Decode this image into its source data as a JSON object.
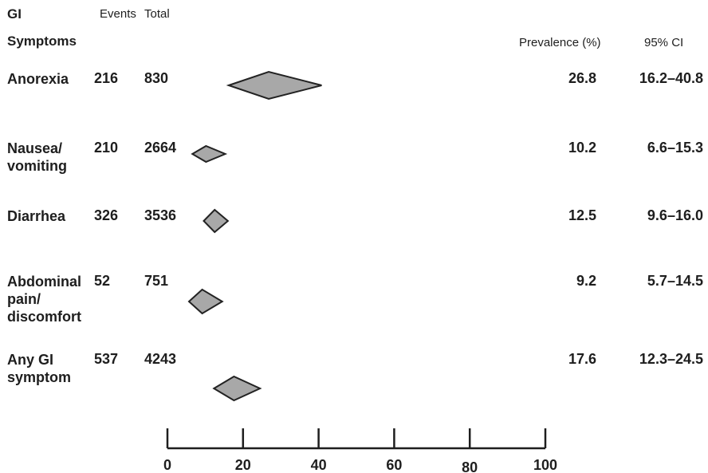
{
  "headers": {
    "col1_line1": "GI",
    "col1_line2": "Symptoms",
    "events": "Events",
    "total": "Total",
    "prevalence": "Prevalence (%)",
    "ci": "95% CI"
  },
  "rows": [
    {
      "symptom_lines": [
        "Anorexia"
      ],
      "events": "216",
      "total": "830",
      "prevalence": "26.8",
      "ci": "16.2–40.8"
    },
    {
      "symptom_lines": [
        "Nausea/",
        "vomiting"
      ],
      "events": "210",
      "total": "2664",
      "prevalence": "10.2",
      "ci": "6.6–15.3"
    },
    {
      "symptom_lines": [
        "Diarrhea"
      ],
      "events": "326",
      "total": "3536",
      "prevalence": "12.5",
      "ci": "9.6–16.0"
    },
    {
      "symptom_lines": [
        "Abdominal",
        "pain/",
        "discomfort"
      ],
      "events": "52",
      "total": "751",
      "prevalence": "9.2",
      "ci": "5.7–14.5"
    },
    {
      "symptom_lines": [
        "Any GI",
        "symptom"
      ],
      "events": "537",
      "total": "4243",
      "prevalence": "17.6",
      "ci": "12.3–24.5"
    }
  ],
  "chart_data": {
    "type": "forest",
    "x_ticks": [
      "0",
      "20",
      "40",
      "60",
      "80",
      "100"
    ],
    "xlim": [
      0,
      100
    ],
    "diamond_fill": "#a8a8a8",
    "diamond_stroke": "#222222",
    "series": [
      {
        "label": "Anorexia",
        "estimate": 26.8,
        "lower": 16.2,
        "upper": 40.8
      },
      {
        "label": "Nausea/vomiting",
        "estimate": 10.2,
        "lower": 6.6,
        "upper": 15.3
      },
      {
        "label": "Diarrhea",
        "estimate": 12.5,
        "lower": 9.6,
        "upper": 16.0
      },
      {
        "label": "Abdominal pain/discomfort",
        "estimate": 9.2,
        "lower": 5.7,
        "upper": 14.5
      },
      {
        "label": "Any GI symptom",
        "estimate": 17.6,
        "lower": 12.3,
        "upper": 24.5
      }
    ]
  }
}
